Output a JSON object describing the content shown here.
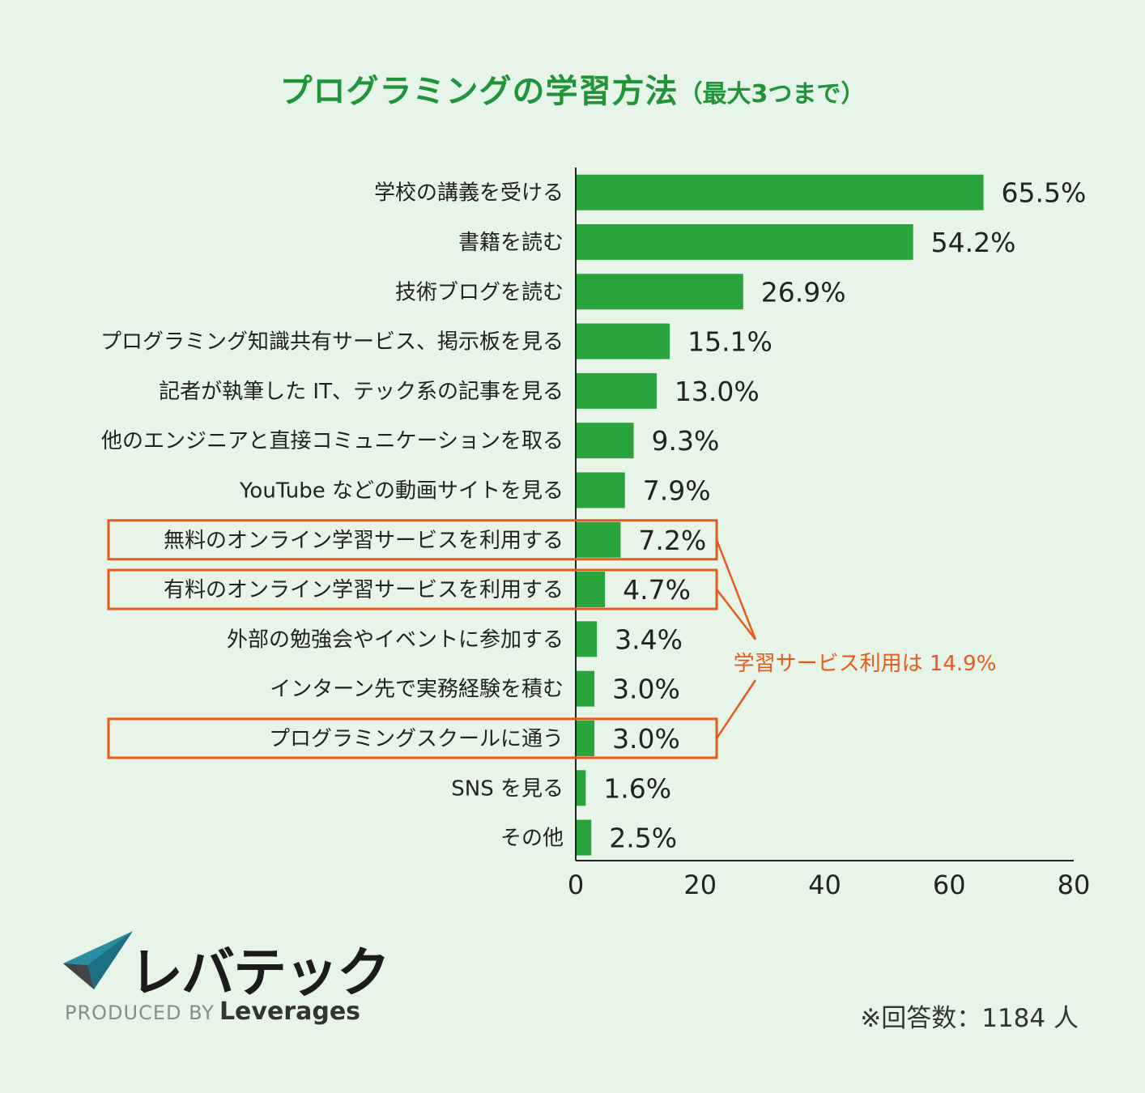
{
  "chart_title": "プログラミングの学習方法",
  "chart_subtitle": "（最大3つまで）",
  "chart_data": {
    "type": "bar",
    "orientation": "horizontal",
    "title": "プログラミングの学習方法（最大3つまで）",
    "categories": [
      "学校の講義を受ける",
      "書籍を読む",
      "技術ブログを読む",
      "プログラミング知識共有サービス、掲示板を見る",
      "記者が執筆した IT、テック系の記事を見る",
      "他のエンジニアと直接コミュニケーションを取る",
      "YouTube などの動画サイトを見る",
      "無料のオンライン学習サービスを利用する",
      "有料のオンライン学習サービスを利用する",
      "外部の勉強会やイベントに参加する",
      "インターン先で実務経験を積む",
      "プログラミングスクールに通う",
      "SNS を見る",
      "その他"
    ],
    "values": [
      65.5,
      54.2,
      26.9,
      15.1,
      13.0,
      9.3,
      7.9,
      7.2,
      4.7,
      3.4,
      3.0,
      3.0,
      1.6,
      2.5
    ],
    "value_labels": [
      "65.5%",
      "54.2%",
      "26.9%",
      "15.1%",
      "13.0%",
      "9.3%",
      "7.9%",
      "7.2%",
      "4.7%",
      "3.4%",
      "3.0%",
      "3.0%",
      "1.6%",
      "2.5%"
    ],
    "xlim": [
      0,
      80
    ],
    "xticks": [
      "0",
      "20",
      "40",
      "60",
      "80"
    ],
    "bar_color": "#29a43d",
    "highlighted_indices": [
      7,
      8,
      11
    ],
    "highlight_color": "#e8591c",
    "annotation": "学習サービス利用は 14.9%",
    "xlabel": "",
    "ylabel": "",
    "grid": false
  },
  "footer": {
    "logo_text": "レバテック",
    "produced_by": "PRODUCED BY",
    "brand": "Leverages",
    "respondents": "※回答数：1184 人"
  }
}
